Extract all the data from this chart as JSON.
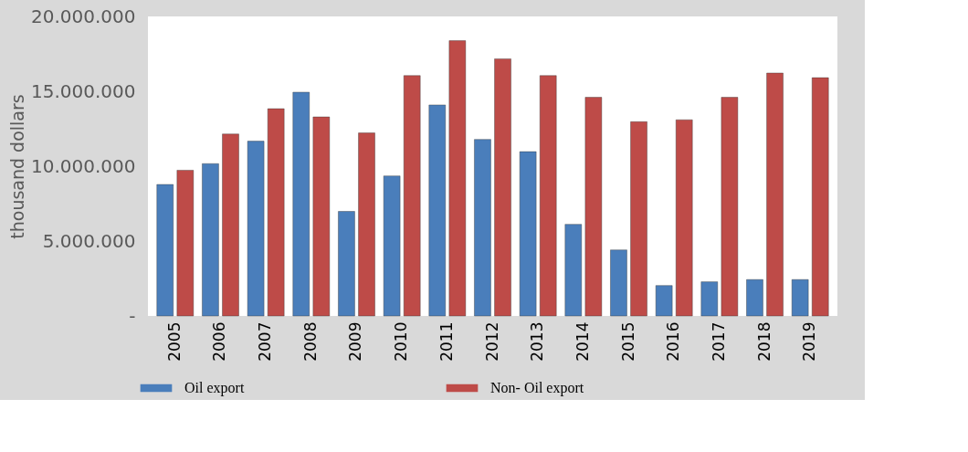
{
  "chart_data": {
    "type": "bar",
    "ylabel": "thousand dollars",
    "categories": [
      "2005",
      "2006",
      "2007",
      "2008",
      "2009",
      "2010",
      "2011",
      "2012",
      "2013",
      "2014",
      "2015",
      "2016",
      "2017",
      "2018",
      "2019"
    ],
    "series": [
      {
        "name": "Oil export",
        "color": "#4a7ebb",
        "values": [
          8780000,
          10170000,
          11670000,
          14940000,
          6980000,
          9350000,
          14090000,
          11790000,
          10970000,
          6120000,
          4410000,
          2030000,
          2280000,
          2430000,
          2430000
        ]
      },
      {
        "name": "Non- Oil export",
        "color": "#be4b48",
        "values": [
          9730000,
          12150000,
          13840000,
          13290000,
          12220000,
          16050000,
          18380000,
          17170000,
          16050000,
          14600000,
          12970000,
          13100000,
          14600000,
          16220000,
          15910000
        ]
      }
    ],
    "ylim": [
      0,
      20000000
    ],
    "yticks": [
      {
        "value": 0,
        "label": "-"
      },
      {
        "value": 5000000,
        "label": "5.000.000"
      },
      {
        "value": 10000000,
        "label": "10.000.000"
      },
      {
        "value": 15000000,
        "label": "15.000.000"
      },
      {
        "value": 20000000,
        "label": "20.000.000"
      }
    ],
    "grid": false,
    "legend": "bottom"
  }
}
